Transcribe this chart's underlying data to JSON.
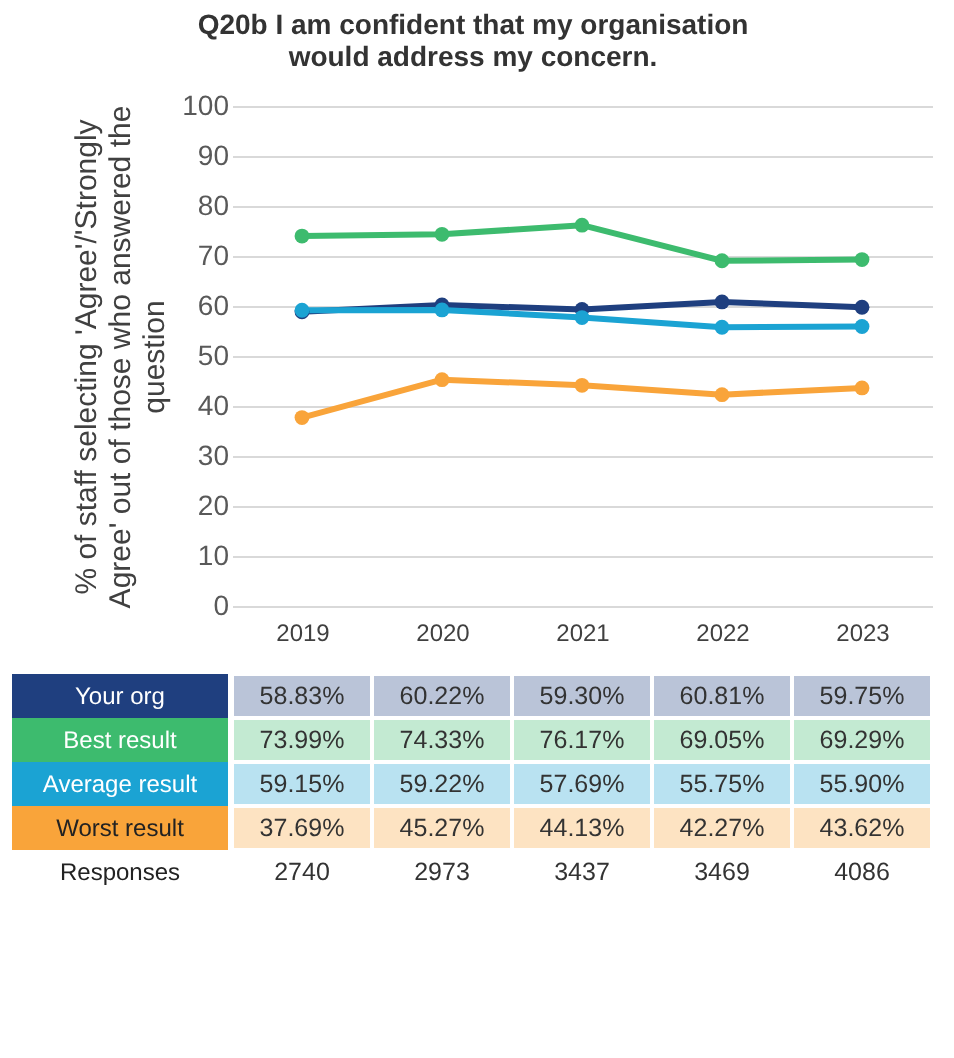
{
  "chart_data": {
    "type": "line",
    "title": "Q20b I am confident that my organisation would address my concern.",
    "ylabel": "% of staff selecting 'Agree'/'Strongly Agree' out of those who answered the question",
    "categories": [
      "2019",
      "2020",
      "2021",
      "2022",
      "2023"
    ],
    "series": [
      {
        "name": "Your org",
        "color": "#1f3f7f",
        "values": [
          58.83,
          60.22,
          59.3,
          60.81,
          59.75
        ],
        "value_labels": [
          "58.83%",
          "60.22%",
          "59.30%",
          "60.81%",
          "59.75%"
        ]
      },
      {
        "name": "Best result",
        "color": "#3dbb6e",
        "values": [
          73.99,
          74.33,
          76.17,
          69.05,
          69.29
        ],
        "value_labels": [
          "73.99%",
          "74.33%",
          "76.17%",
          "69.05%",
          "69.29%"
        ]
      },
      {
        "name": "Average result",
        "color": "#1ba3d3",
        "values": [
          59.15,
          59.22,
          57.69,
          55.75,
          55.9
        ],
        "value_labels": [
          "59.15%",
          "59.22%",
          "57.69%",
          "55.75%",
          "55.90%"
        ]
      },
      {
        "name": "Worst result",
        "color": "#f9a43a",
        "values": [
          37.69,
          45.27,
          44.13,
          42.27,
          43.62
        ],
        "value_labels": [
          "37.69%",
          "45.27%",
          "44.13%",
          "42.27%",
          "43.62%"
        ]
      }
    ],
    "annotations": [
      "Responses",
      "2740",
      "2973",
      "3437",
      "3469",
      "4086"
    ],
    "ylim": [
      0,
      100
    ],
    "yticks": [
      0,
      10,
      20,
      30,
      40,
      50,
      60,
      70,
      80,
      90,
      100
    ],
    "grid": "y",
    "marker": "circle",
    "line_style": "solid"
  }
}
